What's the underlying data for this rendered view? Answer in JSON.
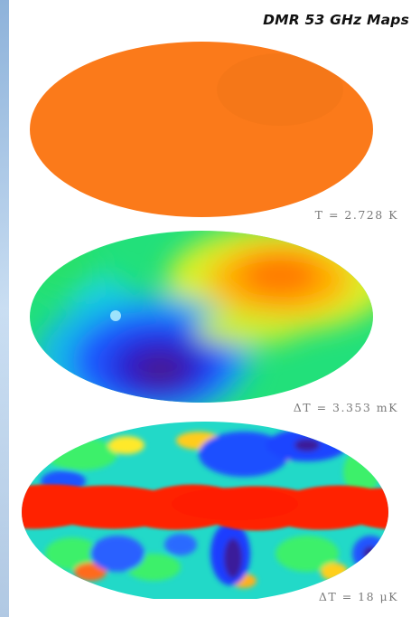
{
  "title": "DMR 53 GHz Maps",
  "maps": [
    {
      "caption_sym": "T",
      "caption_rest": " = 2.728 K"
    },
    {
      "caption_sym": "ΔT",
      "caption_rest": " = 3.353 mK"
    },
    {
      "caption_sym": "ΔT",
      "caption_rest": " = 18 μK"
    }
  ],
  "colors": {
    "uniform": "#fb7a1a",
    "red": "#ff2a00",
    "orange": "#ff9a00",
    "yellow": "#f2f22a",
    "green": "#22e07a",
    "cyan": "#18d8e8",
    "blue": "#1a3dff",
    "purple": "#3a1a8a"
  }
}
